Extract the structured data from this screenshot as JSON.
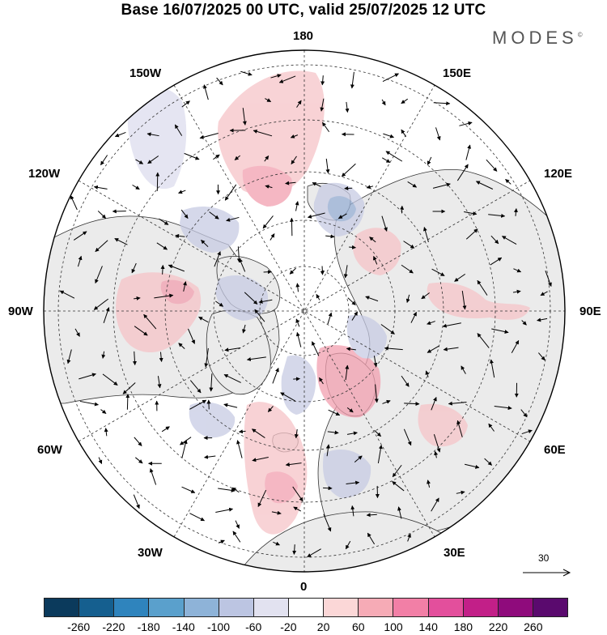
{
  "title": "Base 16/07/2025 00 UTC, valid 25/07/2025 12 UTC",
  "brand": "MODES",
  "brand_mark": "©",
  "longitude_labels": {
    "top": "180",
    "bottom": "0",
    "left": "90W",
    "right": "90E",
    "upper_left": "150W",
    "upper_right": "150E",
    "mid_upper_left": "120W",
    "mid_upper_right": "120E",
    "lower_left": "60W",
    "lower_right": "60E",
    "bottom_left": "30W",
    "bottom_right": "30E"
  },
  "reference_vector": {
    "label": "30",
    "icon": "right-arrow-icon"
  },
  "colorbar": {
    "colors": [
      "#0b3a5c",
      "#155f8f",
      "#2f84bd",
      "#5aa0cc",
      "#8eb3d8",
      "#bcc5e2",
      "#e2e2f0",
      "#ffffff",
      "#fbd7d7",
      "#f6abb6",
      "#f27fa6",
      "#e34f9c",
      "#c21f88",
      "#8f0b7c",
      "#5a0a6e"
    ],
    "tick_labels": [
      "-260",
      "-220",
      "-180",
      "-140",
      "-100",
      "-60",
      "-20",
      "20",
      "60",
      "100",
      "140",
      "180",
      "220",
      "260"
    ]
  },
  "map_colors": {
    "land": "#ebebeb",
    "ocean": "#ffffff",
    "coast": "#333333",
    "grid": "#333333"
  }
}
